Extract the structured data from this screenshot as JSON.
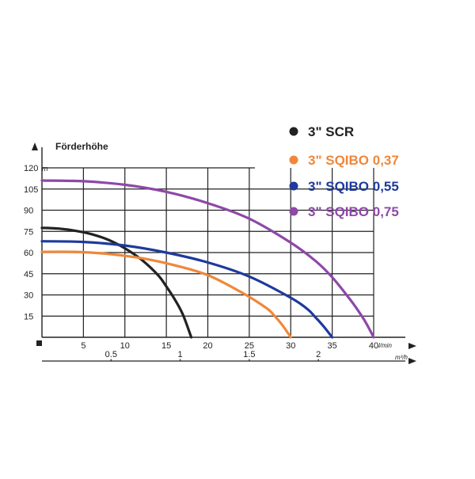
{
  "chart_data": {
    "type": "line",
    "ylabel": "Förderhöhe",
    "y_max_label": "120",
    "y_unit": "m",
    "x_unit": "l/min",
    "x2_unit": "m³/h",
    "x_ticks": [
      "5",
      "10",
      "15",
      "20",
      "25",
      "30",
      "35",
      "40"
    ],
    "x2_ticks": [
      "0.5",
      "1",
      "1.5",
      "2"
    ],
    "y_ticks": [
      "15",
      "30",
      "45",
      "60",
      "75",
      "90",
      "105"
    ],
    "xlim": [
      0,
      40
    ],
    "ylim": [
      0,
      120
    ],
    "grid": true,
    "legend_position": "top-right",
    "series": [
      {
        "name": "3\" SCR",
        "color": "#222222",
        "x": [
          0,
          2,
          4,
          6,
          8,
          10,
          12,
          14,
          15,
          16,
          17,
          18
        ],
        "y": [
          77.5,
          77,
          75.5,
          73,
          69,
          63,
          55,
          44,
          36,
          27,
          16,
          0
        ]
      },
      {
        "name": "3\" SQIBO 0,37",
        "color": "#f0873a",
        "x": [
          0,
          4,
          8,
          12,
          16,
          20,
          24,
          27,
          28,
          29,
          30
        ],
        "y": [
          60.5,
          60.5,
          59,
          56,
          51,
          44,
          32,
          21,
          15.5,
          8.5,
          0
        ]
      },
      {
        "name": "3\" SQIBO 0,55",
        "color": "#1d3a9c",
        "x": [
          0,
          5,
          10,
          15,
          20,
          25,
          30,
          32,
          33,
          34,
          35
        ],
        "y": [
          68,
          67.5,
          65,
          60,
          53,
          43,
          28,
          20,
          14,
          7.5,
          0
        ]
      },
      {
        "name": "3\" SQIBO 0,75",
        "color": "#8e48a8",
        "x": [
          0,
          5,
          10,
          15,
          20,
          25,
          30,
          33,
          35,
          37,
          38,
          39,
          40
        ],
        "y": [
          111,
          110.5,
          108,
          103,
          95,
          84,
          67,
          54,
          42.5,
          28,
          20,
          11,
          0
        ]
      }
    ]
  }
}
